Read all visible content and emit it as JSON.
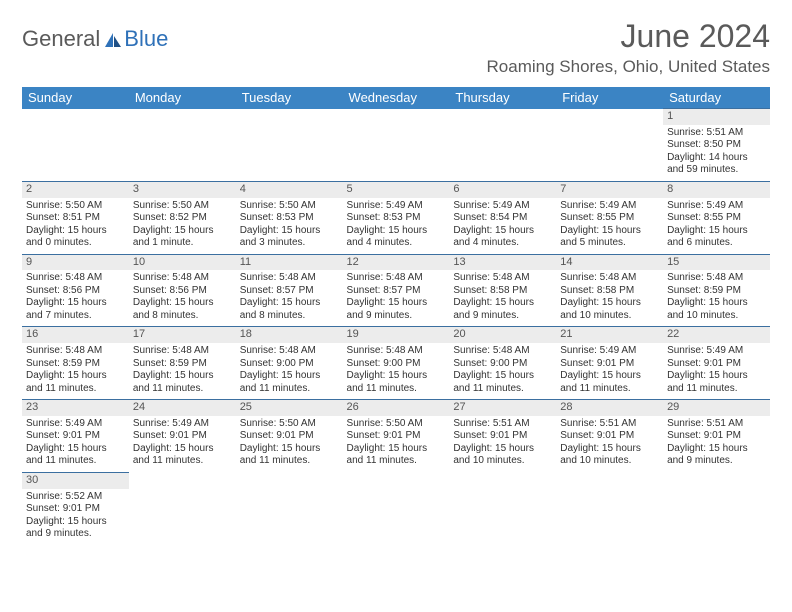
{
  "logo": {
    "part1": "General",
    "part2": "Blue"
  },
  "title": "June 2024",
  "location": "Roaming Shores, Ohio, United States",
  "colors": {
    "header_bg": "#3b84c4",
    "header_text": "#ffffff",
    "daynum_bg": "#ececec",
    "border": "#3b6fa0",
    "body_text": "#333333",
    "title_text": "#5a5a5a",
    "logo_blue": "#2f71b8"
  },
  "days_of_week": [
    "Sunday",
    "Monday",
    "Tuesday",
    "Wednesday",
    "Thursday",
    "Friday",
    "Saturday"
  ],
  "weeks": [
    [
      null,
      null,
      null,
      null,
      null,
      null,
      {
        "n": 1,
        "sunrise": "5:51 AM",
        "sunset": "8:50 PM",
        "daylight": "14 hours and 59 minutes."
      }
    ],
    [
      {
        "n": 2,
        "sunrise": "5:50 AM",
        "sunset": "8:51 PM",
        "daylight": "15 hours and 0 minutes."
      },
      {
        "n": 3,
        "sunrise": "5:50 AM",
        "sunset": "8:52 PM",
        "daylight": "15 hours and 1 minute."
      },
      {
        "n": 4,
        "sunrise": "5:50 AM",
        "sunset": "8:53 PM",
        "daylight": "15 hours and 3 minutes."
      },
      {
        "n": 5,
        "sunrise": "5:49 AM",
        "sunset": "8:53 PM",
        "daylight": "15 hours and 4 minutes."
      },
      {
        "n": 6,
        "sunrise": "5:49 AM",
        "sunset": "8:54 PM",
        "daylight": "15 hours and 4 minutes."
      },
      {
        "n": 7,
        "sunrise": "5:49 AM",
        "sunset": "8:55 PM",
        "daylight": "15 hours and 5 minutes."
      },
      {
        "n": 8,
        "sunrise": "5:49 AM",
        "sunset": "8:55 PM",
        "daylight": "15 hours and 6 minutes."
      }
    ],
    [
      {
        "n": 9,
        "sunrise": "5:48 AM",
        "sunset": "8:56 PM",
        "daylight": "15 hours and 7 minutes."
      },
      {
        "n": 10,
        "sunrise": "5:48 AM",
        "sunset": "8:56 PM",
        "daylight": "15 hours and 8 minutes."
      },
      {
        "n": 11,
        "sunrise": "5:48 AM",
        "sunset": "8:57 PM",
        "daylight": "15 hours and 8 minutes."
      },
      {
        "n": 12,
        "sunrise": "5:48 AM",
        "sunset": "8:57 PM",
        "daylight": "15 hours and 9 minutes."
      },
      {
        "n": 13,
        "sunrise": "5:48 AM",
        "sunset": "8:58 PM",
        "daylight": "15 hours and 9 minutes."
      },
      {
        "n": 14,
        "sunrise": "5:48 AM",
        "sunset": "8:58 PM",
        "daylight": "15 hours and 10 minutes."
      },
      {
        "n": 15,
        "sunrise": "5:48 AM",
        "sunset": "8:59 PM",
        "daylight": "15 hours and 10 minutes."
      }
    ],
    [
      {
        "n": 16,
        "sunrise": "5:48 AM",
        "sunset": "8:59 PM",
        "daylight": "15 hours and 11 minutes."
      },
      {
        "n": 17,
        "sunrise": "5:48 AM",
        "sunset": "8:59 PM",
        "daylight": "15 hours and 11 minutes."
      },
      {
        "n": 18,
        "sunrise": "5:48 AM",
        "sunset": "9:00 PM",
        "daylight": "15 hours and 11 minutes."
      },
      {
        "n": 19,
        "sunrise": "5:48 AM",
        "sunset": "9:00 PM",
        "daylight": "15 hours and 11 minutes."
      },
      {
        "n": 20,
        "sunrise": "5:48 AM",
        "sunset": "9:00 PM",
        "daylight": "15 hours and 11 minutes."
      },
      {
        "n": 21,
        "sunrise": "5:49 AM",
        "sunset": "9:01 PM",
        "daylight": "15 hours and 11 minutes."
      },
      {
        "n": 22,
        "sunrise": "5:49 AM",
        "sunset": "9:01 PM",
        "daylight": "15 hours and 11 minutes."
      }
    ],
    [
      {
        "n": 23,
        "sunrise": "5:49 AM",
        "sunset": "9:01 PM",
        "daylight": "15 hours and 11 minutes."
      },
      {
        "n": 24,
        "sunrise": "5:49 AM",
        "sunset": "9:01 PM",
        "daylight": "15 hours and 11 minutes."
      },
      {
        "n": 25,
        "sunrise": "5:50 AM",
        "sunset": "9:01 PM",
        "daylight": "15 hours and 11 minutes."
      },
      {
        "n": 26,
        "sunrise": "5:50 AM",
        "sunset": "9:01 PM",
        "daylight": "15 hours and 11 minutes."
      },
      {
        "n": 27,
        "sunrise": "5:51 AM",
        "sunset": "9:01 PM",
        "daylight": "15 hours and 10 minutes."
      },
      {
        "n": 28,
        "sunrise": "5:51 AM",
        "sunset": "9:01 PM",
        "daylight": "15 hours and 10 minutes."
      },
      {
        "n": 29,
        "sunrise": "5:51 AM",
        "sunset": "9:01 PM",
        "daylight": "15 hours and 9 minutes."
      }
    ],
    [
      {
        "n": 30,
        "sunrise": "5:52 AM",
        "sunset": "9:01 PM",
        "daylight": "15 hours and 9 minutes."
      },
      null,
      null,
      null,
      null,
      null,
      null
    ]
  ],
  "labels": {
    "sunrise": "Sunrise:",
    "sunset": "Sunset:",
    "daylight": "Daylight:"
  }
}
